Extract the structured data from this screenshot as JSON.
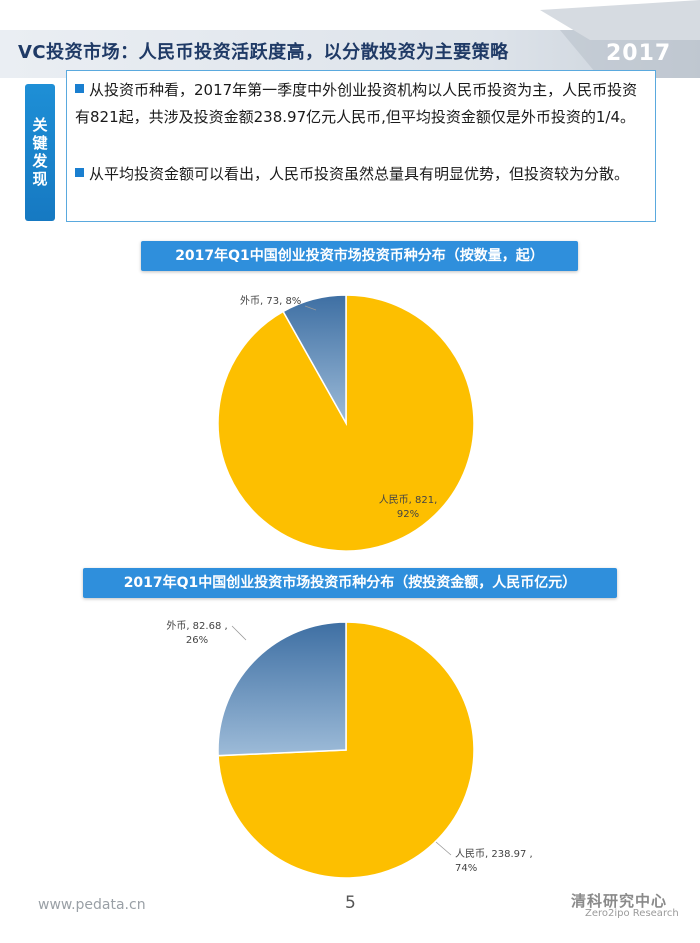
{
  "header": {
    "title": "VC投资市场：人民币投资活跃度高，以分散投资为主要策略",
    "year": "2017"
  },
  "key_findings": {
    "label": "关键发现",
    "items": [
      "从投资币种看，2017年第一季度中外创业投资机构以人民币投资为主，人民币投资有821起，共涉及投资金额238.97亿元人民币,但平均投资金额仅是外币投资的1/4。",
      "从平均投资金额可以看出，人民币投资虽然总量具有明显优势，但投资较为分散。"
    ]
  },
  "chart_data": [
    {
      "type": "pie",
      "title": "2017年Q1中国创业投资市场投资币种分布（按数量，起）",
      "slices": [
        {
          "label": "人民币",
          "value": 821,
          "percent": "92%",
          "color": "#fdbf00"
        },
        {
          "label": "外币",
          "value": 73,
          "percent": "8%",
          "color": "#4f7fb0"
        }
      ]
    },
    {
      "type": "pie",
      "title": "2017年Q1中国创业投资市场投资币种分布（按投资金额，人民币亿元）",
      "slices": [
        {
          "label": "人民币",
          "value": 238.97,
          "percent": "74%",
          "color": "#fdbf00"
        },
        {
          "label": "外币",
          "value": 82.68,
          "percent": "26%",
          "color": "#4f7fb0"
        }
      ]
    }
  ],
  "footer": {
    "url": "www.pedata.cn",
    "page": "5",
    "logo_cn": "清科研究中心",
    "logo_en": "Zero2ipo Research"
  }
}
